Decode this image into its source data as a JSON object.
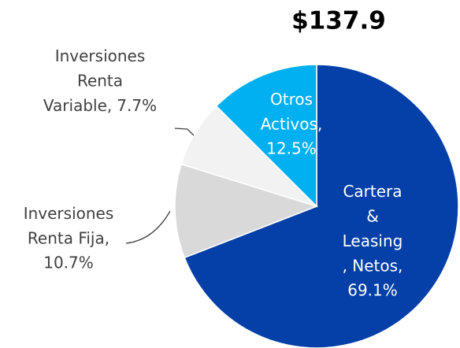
{
  "chart_data": {
    "type": "pie",
    "title": "$137.9",
    "categories": [
      [
        "Cartera",
        "&",
        "Leasing",
        ", Netos,"
      ],
      [
        "Inversiones",
        "Renta Fija,"
      ],
      [
        "Inversiones",
        "Renta",
        "Variable,"
      ],
      [
        "Otros",
        "Activos,"
      ]
    ],
    "values": [
      69.1,
      10.7,
      7.7,
      12.5
    ],
    "value_labels": [
      "69.1%",
      "10.7%",
      "7.7%",
      "12.5%"
    ],
    "colors": [
      "#0540a8",
      "#d9d9d9",
      "#f2f2f2",
      "#00b0f0"
    ]
  }
}
